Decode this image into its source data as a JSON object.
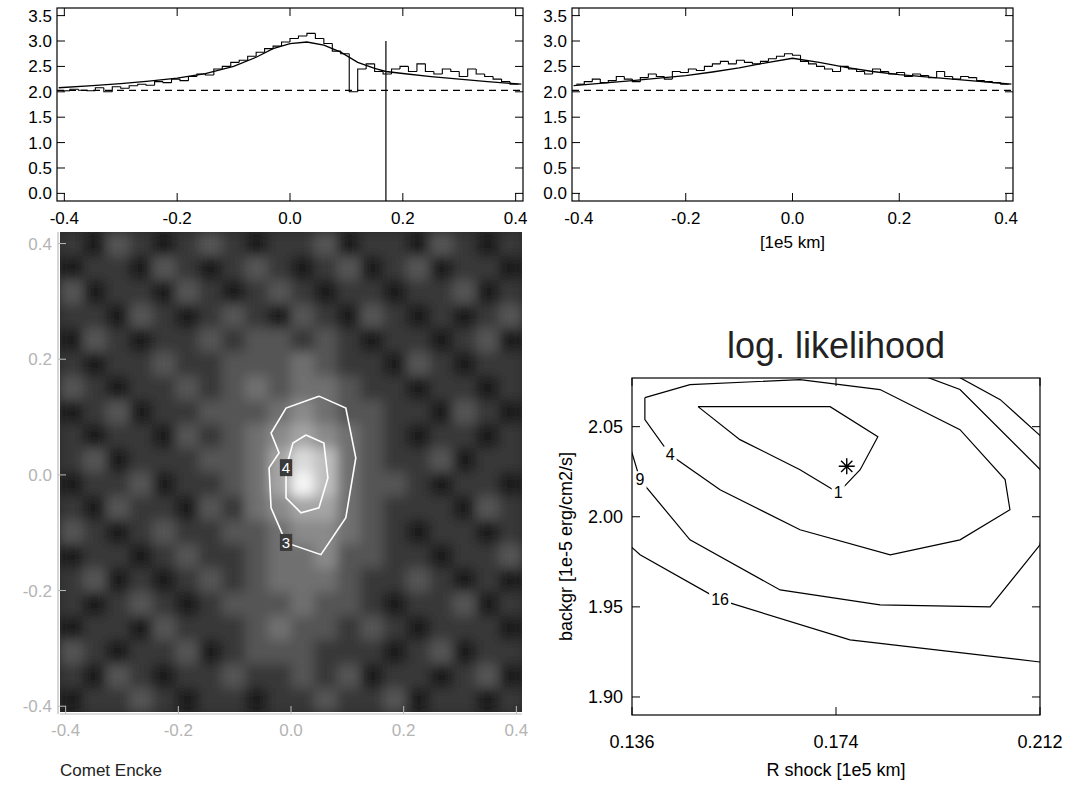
{
  "chart_data": [
    {
      "type": "histogram",
      "bins": [
        -0.405,
        -0.39,
        -0.375,
        -0.36,
        -0.345,
        -0.33,
        -0.315,
        -0.3,
        -0.285,
        -0.27,
        -0.255,
        -0.24,
        -0.225,
        -0.21,
        -0.195,
        -0.18,
        -0.165,
        -0.15,
        -0.135,
        -0.12,
        -0.105,
        -0.09,
        -0.075,
        -0.06,
        -0.045,
        -0.03,
        -0.015,
        0,
        0.015,
        0.03,
        0.045,
        0.06,
        0.075,
        0.09,
        0.105,
        0.12,
        0.135,
        0.15,
        0.165,
        0.18,
        0.195,
        0.21,
        0.225,
        0.24,
        0.255,
        0.27,
        0.285,
        0.3,
        0.315,
        0.33,
        0.345,
        0.36,
        0.375,
        0.39,
        0.405
      ],
      "values": [
        2.02,
        2.05,
        2.03,
        2.02,
        2.08,
        2.0,
        2.1,
        2.07,
        2.12,
        2.15,
        2.13,
        2.2,
        2.18,
        2.25,
        2.22,
        2.3,
        2.35,
        2.33,
        2.45,
        2.5,
        2.58,
        2.62,
        2.7,
        2.78,
        2.85,
        2.9,
        2.98,
        3.05,
        3.1,
        3.15,
        3.05,
        2.95,
        2.8,
        2.75,
        2.0,
        2.45,
        2.55,
        2.4,
        2.35,
        2.45,
        2.5,
        2.4,
        2.55,
        2.4,
        2.35,
        2.45,
        2.4,
        2.3,
        2.45,
        2.35,
        2.3,
        2.25,
        2.2,
        2.15
      ],
      "model": {
        "x": [
          -0.41,
          -0.35,
          -0.3,
          -0.25,
          -0.2,
          -0.15,
          -0.1,
          -0.06,
          -0.03,
          0.0,
          0.03,
          0.06,
          0.09,
          0.12,
          0.15,
          0.17,
          0.2,
          0.25,
          0.3,
          0.35,
          0.41
        ],
        "y": [
          2.08,
          2.12,
          2.16,
          2.21,
          2.27,
          2.36,
          2.5,
          2.68,
          2.85,
          2.95,
          2.98,
          2.92,
          2.78,
          2.58,
          2.46,
          2.4,
          2.36,
          2.3,
          2.25,
          2.2,
          2.15
        ]
      },
      "background": 2.03,
      "shock_line": {
        "x": 0.17,
        "y_top": 3.0
      },
      "xlim": [
        -0.413,
        0.413
      ],
      "ylim": [
        -0.15,
        3.65
      ],
      "xticks": [
        -0.4,
        -0.2,
        {
          "value": 0,
          "label": "0.0"
        },
        0.2,
        0.4
      ],
      "yticks": [
        {
          "value": 0,
          "label": "0.0"
        },
        0.5,
        {
          "value": 1,
          "label": "1.0"
        },
        1.5,
        {
          "value": 2,
          "label": "2.0"
        },
        2.5,
        {
          "value": 3,
          "label": "3.0"
        },
        3.5
      ]
    },
    {
      "type": "histogram",
      "xlabel": "[1e5 km]",
      "bins": [
        -0.405,
        -0.39,
        -0.375,
        -0.36,
        -0.345,
        -0.33,
        -0.315,
        -0.3,
        -0.285,
        -0.27,
        -0.255,
        -0.24,
        -0.225,
        -0.21,
        -0.195,
        -0.18,
        -0.165,
        -0.15,
        -0.135,
        -0.12,
        -0.105,
        -0.09,
        -0.075,
        -0.06,
        -0.045,
        -0.03,
        -0.015,
        0,
        0.015,
        0.03,
        0.045,
        0.06,
        0.075,
        0.09,
        0.105,
        0.12,
        0.135,
        0.15,
        0.165,
        0.18,
        0.195,
        0.21,
        0.225,
        0.24,
        0.255,
        0.27,
        0.285,
        0.3,
        0.315,
        0.33,
        0.345,
        0.36,
        0.375,
        0.39,
        0.405
      ],
      "values": [
        2.15,
        2.2,
        2.25,
        2.18,
        2.22,
        2.3,
        2.25,
        2.2,
        2.28,
        2.35,
        2.3,
        2.25,
        2.4,
        2.38,
        2.45,
        2.42,
        2.5,
        2.55,
        2.6,
        2.55,
        2.62,
        2.58,
        2.55,
        2.6,
        2.65,
        2.7,
        2.75,
        2.72,
        2.6,
        2.55,
        2.5,
        2.45,
        2.4,
        2.5,
        2.45,
        2.4,
        2.35,
        2.45,
        2.4,
        2.35,
        2.38,
        2.3,
        2.35,
        2.32,
        2.28,
        2.4,
        2.3,
        2.25,
        2.3,
        2.28,
        2.22,
        2.2,
        2.18,
        2.15
      ],
      "model": {
        "x": [
          -0.41,
          -0.3,
          -0.2,
          -0.15,
          -0.1,
          -0.05,
          0.0,
          0.05,
          0.1,
          0.15,
          0.2,
          0.3,
          0.41
        ],
        "y": [
          2.12,
          2.22,
          2.32,
          2.39,
          2.47,
          2.57,
          2.66,
          2.58,
          2.48,
          2.4,
          2.34,
          2.25,
          2.15
        ]
      },
      "background": 2.03,
      "xlim": [
        -0.413,
        0.413
      ],
      "ylim": [
        -0.15,
        3.65
      ],
      "xticks": [
        -0.4,
        -0.2,
        {
          "value": 0,
          "label": "0.0"
        },
        0.2,
        0.4
      ],
      "yticks": [
        {
          "value": 0,
          "label": "0.0"
        },
        0.5,
        {
          "value": 1,
          "label": "1.0"
        },
        1.5,
        {
          "value": 2,
          "label": "2.0"
        },
        2.5,
        {
          "value": 3,
          "label": "3.0"
        },
        3.5
      ]
    },
    {
      "type": "heatmap",
      "label": "Comet Encke",
      "cells": [
        [
          2,
          1,
          3,
          2,
          1,
          2,
          3,
          2,
          1,
          2,
          2,
          3,
          1,
          2,
          2,
          1,
          3,
          2,
          1,
          2
        ],
        [
          1,
          2,
          2,
          1,
          3,
          2,
          1,
          2,
          3,
          2,
          1,
          2,
          3,
          1,
          2,
          3,
          1,
          2,
          2,
          1
        ],
        [
          3,
          1,
          2,
          2,
          1,
          3,
          2,
          1,
          2,
          3,
          2,
          1,
          2,
          2,
          1,
          2,
          2,
          3,
          1,
          2
        ],
        [
          2,
          2,
          1,
          3,
          2,
          1,
          2,
          3,
          2,
          1,
          3,
          2,
          1,
          3,
          2,
          1,
          2,
          1,
          2,
          3
        ],
        [
          1,
          3,
          2,
          1,
          2,
          2,
          3,
          2,
          3,
          3,
          2,
          3,
          2,
          1,
          2,
          2,
          1,
          2,
          3,
          1
        ],
        [
          2,
          1,
          2,
          2,
          3,
          2,
          2,
          3,
          3,
          3,
          4,
          3,
          2,
          2,
          1,
          3,
          2,
          1,
          2,
          2
        ],
        [
          3,
          2,
          1,
          2,
          2,
          3,
          2,
          3,
          4,
          3,
          4,
          4,
          3,
          2,
          2,
          1,
          2,
          2,
          1,
          2
        ],
        [
          1,
          2,
          3,
          1,
          2,
          2,
          3,
          3,
          3,
          4,
          5,
          4,
          3,
          3,
          2,
          2,
          1,
          3,
          2,
          1
        ],
        [
          2,
          1,
          2,
          2,
          1,
          3,
          2,
          3,
          4,
          5,
          6,
          5,
          4,
          3,
          2,
          1,
          2,
          2,
          1,
          2
        ],
        [
          2,
          3,
          1,
          2,
          2,
          2,
          3,
          3,
          4,
          6,
          8,
          7,
          4,
          3,
          2,
          2,
          3,
          1,
          2,
          2
        ],
        [
          1,
          2,
          2,
          3,
          1,
          2,
          2,
          3,
          4,
          6,
          9,
          7,
          4,
          3,
          3,
          2,
          1,
          2,
          2,
          1
        ],
        [
          2,
          1,
          3,
          2,
          2,
          1,
          3,
          2,
          4,
          5,
          6,
          6,
          4,
          3,
          2,
          2,
          2,
          1,
          3,
          2
        ],
        [
          3,
          2,
          1,
          2,
          3,
          2,
          2,
          3,
          3,
          4,
          5,
          5,
          4,
          3,
          2,
          1,
          2,
          2,
          1,
          2
        ],
        [
          1,
          2,
          2,
          1,
          2,
          3,
          2,
          2,
          3,
          4,
          4,
          5,
          3,
          3,
          2,
          2,
          1,
          2,
          2,
          3
        ],
        [
          2,
          3,
          1,
          2,
          1,
          2,
          3,
          2,
          3,
          4,
          4,
          4,
          3,
          2,
          2,
          3,
          2,
          1,
          2,
          1
        ],
        [
          2,
          1,
          2,
          3,
          2,
          1,
          2,
          3,
          3,
          3,
          4,
          3,
          3,
          2,
          1,
          2,
          2,
          3,
          1,
          2
        ],
        [
          1,
          2,
          2,
          1,
          3,
          2,
          2,
          2,
          3,
          4,
          3,
          3,
          2,
          3,
          2,
          1,
          2,
          2,
          2,
          1
        ],
        [
          3,
          2,
          1,
          2,
          2,
          3,
          1,
          2,
          3,
          3,
          3,
          2,
          2,
          2,
          1,
          2,
          3,
          1,
          2,
          2
        ],
        [
          2,
          1,
          3,
          2,
          1,
          2,
          2,
          3,
          2,
          2,
          3,
          2,
          3,
          1,
          2,
          2,
          1,
          2,
          3,
          1
        ],
        [
          1,
          2,
          2,
          3,
          2,
          1,
          2,
          2,
          1,
          2,
          2,
          3,
          2,
          2,
          3,
          1,
          2,
          2,
          1,
          2
        ]
      ],
      "contours": [
        {
          "level": 3,
          "x": [
            0.0496,
            0.0973,
            0.115,
            0.0973,
            0.0531,
            -0.0088,
            -0.0354,
            -0.0389,
            -0.0212,
            -0.0354,
            -0.0088,
            0.0496
          ],
          "y": [
            0.1362,
            0.1155,
            0.0293,
            -0.0741,
            -0.1379,
            -0.1172,
            -0.0569,
            0.0121,
            0.0379,
            0.0724,
            0.1155,
            0.1362
          ]
        },
        {
          "level": 4,
          "x": [
            0.0265,
            0.0584,
            0.0655,
            0.0496,
            0.0177,
            -0.0088,
            -0.0088,
            0.0035,
            0.0265
          ],
          "y": [
            0.069,
            0.0552,
            -0.0052,
            -0.0569,
            -0.0655,
            -0.0397,
            0.0121,
            0.0552,
            0.069
          ]
        }
      ],
      "xlim": [
        -0.41,
        0.41
      ],
      "ylim": [
        -0.41,
        0.42
      ],
      "xticks": [
        -0.4,
        -0.2,
        {
          "value": 0,
          "label": "0.0"
        },
        0.2,
        0.4
      ],
      "yticks": [
        -0.4,
        -0.2,
        {
          "value": 0,
          "label": "0.0"
        },
        0.2,
        0.4
      ]
    },
    {
      "type": "contour",
      "title": "log. likelihood",
      "xlabel": "R shock [1e5 km]",
      "ylabel": "backgr [1e-5 erg/cm2/s]",
      "contours": [
        {
          "level": 1,
          "x": [
            0.1483,
            0.1729,
            0.1818,
            0.1785,
            0.1744,
            0.1673,
            0.1561,
            0.1483
          ],
          "y": [
            2.0611,
            2.0611,
            2.0444,
            2.0261,
            2.0133,
            2.0261,
            2.0428,
            2.0611
          ]
        },
        {
          "level": 4,
          "x": [
            0.1384,
            0.1468,
            0.1673,
            0.1822,
            0.1971,
            0.2055,
            0.2064,
            0.1971,
            0.1841,
            0.1673,
            0.1524,
            0.1431,
            0.1384,
            0.1384
          ],
          "y": [
            2.0661,
            2.0733,
            2.0761,
            2.0706,
            2.0483,
            2.0206,
            2.0039,
            1.9872,
            1.9789,
            1.9928,
            2.015,
            2.0344,
            2.0539,
            2.0661
          ]
        },
        {
          "level": 9,
          "x": [
            0.13,
            0.1347,
            0.1375,
            0.1468,
            0.1636,
            0.1822,
            0.2027,
            0.212,
            0.2139,
            0.1971,
            0.1822,
            0.13
          ],
          "y": [
            2.0817,
            2.0483,
            2.0206,
            1.9872,
            1.9594,
            1.9511,
            1.95,
            1.9844,
            2.0206,
            2.0706,
            2.0872,
            2.0872
          ]
        },
        {
          "level": 16,
          "x": [
            0.1272,
            0.1375,
            0.1524,
            0.1766,
            0.212,
            null,
            0.1943,
            0.2046,
            0.2139
          ],
          "y": [
            2.0067,
            1.9789,
            1.9539,
            1.9317,
            1.9194,
            null,
            2.0817,
            2.065,
            2.04
          ]
        }
      ],
      "best_fit": {
        "x": 0.176,
        "y": 2.028
      },
      "marker": "star",
      "xlim": [
        0.136,
        0.212
      ],
      "ylim": [
        1.89,
        2.077
      ],
      "xticks": [
        0.136,
        0.174,
        0.212
      ],
      "yticks": [
        {
          "value": 1.9,
          "label": "1.90"
        },
        1.95,
        {
          "value": 2,
          "label": "2.00"
        },
        2.05
      ]
    }
  ]
}
